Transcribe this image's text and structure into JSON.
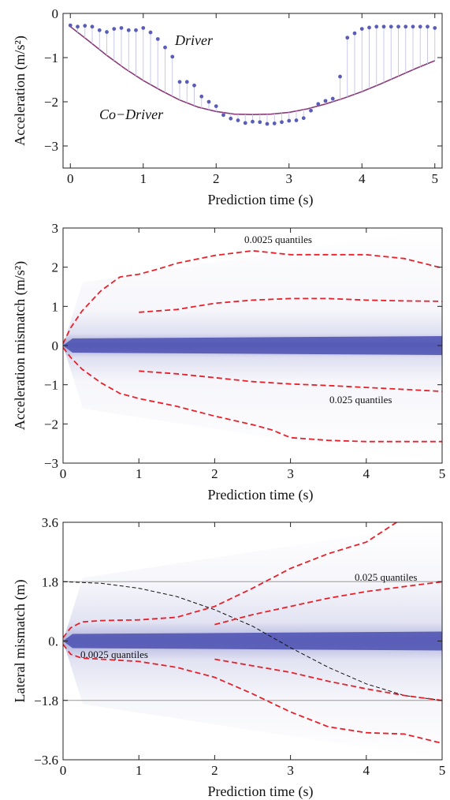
{
  "chart_data": [
    {
      "type": "line",
      "xlabel": "Prediction time (s)",
      "ylabel": "Acceleration (m/s²)",
      "xlim": [
        -0.1,
        5.1
      ],
      "ylim": [
        -3.5,
        0
      ],
      "xticks": [
        "0",
        "1",
        "2",
        "3",
        "4",
        "5"
      ],
      "yticks": [
        "0",
        "−1",
        "−2",
        "−3"
      ],
      "annotations": [
        "Driver",
        "Co−Driver"
      ],
      "series": [
        {
          "name": "Co−Driver",
          "color": "#8b3a7a",
          "style": "solid",
          "x": [
            0,
            0.25,
            0.5,
            0.75,
            1,
            1.25,
            1.5,
            1.75,
            2,
            2.25,
            2.5,
            2.75,
            3,
            3.25,
            3.5,
            3.75,
            4,
            4.25,
            4.5,
            4.75,
            5
          ],
          "y": [
            -0.3,
            -0.62,
            -0.95,
            -1.25,
            -1.52,
            -1.75,
            -1.96,
            -2.12,
            -2.22,
            -2.28,
            -2.29,
            -2.28,
            -2.24,
            -2.16,
            -2.05,
            -1.92,
            -1.77,
            -1.6,
            -1.42,
            -1.24,
            -1.07
          ]
        },
        {
          "name": "Driver",
          "color": "#5a5db8",
          "style": "stem",
          "x": [
            0,
            0.1,
            0.2,
            0.3,
            0.4,
            0.5,
            0.6,
            0.7,
            0.8,
            0.9,
            1.0,
            1.1,
            1.2,
            1.3,
            1.4,
            1.5,
            1.6,
            1.7,
            1.8,
            1.9,
            2.0,
            2.1,
            2.2,
            2.3,
            2.4,
            2.5,
            2.6,
            2.7,
            2.8,
            2.9,
            3.0,
            3.1,
            3.2,
            3.3,
            3.4,
            3.5,
            3.6,
            3.7,
            3.8,
            3.9,
            4.0,
            4.1,
            4.2,
            4.3,
            4.4,
            4.5,
            4.6,
            4.7,
            4.8,
            4.9,
            5.0
          ],
          "y": [
            -0.27,
            -0.3,
            -0.28,
            -0.3,
            -0.38,
            -0.42,
            -0.35,
            -0.33,
            -0.38,
            -0.38,
            -0.33,
            -0.43,
            -0.58,
            -0.77,
            -0.98,
            -1.55,
            -1.55,
            -1.63,
            -1.88,
            -2.0,
            -2.1,
            -2.3,
            -2.38,
            -2.42,
            -2.48,
            -2.45,
            -2.46,
            -2.5,
            -2.49,
            -2.46,
            -2.43,
            -2.42,
            -2.37,
            -2.2,
            -2.05,
            -1.98,
            -1.93,
            -1.43,
            -0.55,
            -0.45,
            -0.35,
            -0.32,
            -0.3,
            -0.3,
            -0.3,
            -0.3,
            -0.3,
            -0.3,
            -0.3,
            -0.3,
            -0.33
          ]
        }
      ]
    },
    {
      "type": "area",
      "xlabel": "Prediction time (s)",
      "ylabel": "Acceleration mismatch (m/s²)",
      "xlim": [
        0,
        5
      ],
      "ylim": [
        -3,
        3
      ],
      "xticks": [
        "0",
        "1",
        "2",
        "3",
        "4",
        "5"
      ],
      "yticks": [
        "3",
        "2",
        "1",
        "0",
        "−1",
        "−2",
        "−3"
      ],
      "annotations": [
        "0.0025 quantiles",
        "0.025 quantiles"
      ],
      "series": [
        {
          "name": "",
          "color": "#e8202a",
          "style": "dashed",
          "x": [
            0,
            0.1,
            0.25,
            0.5,
            0.75,
            1,
            1.25,
            1.5,
            2,
            2.5,
            3,
            3.5,
            4,
            4.5,
            5
          ],
          "y": [
            0.05,
            0.45,
            0.88,
            1.4,
            1.75,
            1.82,
            1.95,
            2.1,
            2.3,
            2.42,
            2.32,
            2.32,
            2.32,
            2.22,
            1.98
          ]
        },
        {
          "name": "",
          "color": "#e8202a",
          "style": "dashed",
          "x": [
            1,
            1.5,
            2,
            2.5,
            3,
            3.5,
            4,
            4.5,
            5
          ],
          "y": [
            0.85,
            0.92,
            1.08,
            1.16,
            1.2,
            1.2,
            1.16,
            1.14,
            1.13
          ]
        },
        {
          "name": "",
          "color": "#e8202a",
          "style": "dashed",
          "x": [
            1,
            1.5,
            2,
            2.5,
            3,
            3.5,
            4,
            4.5,
            5
          ],
          "y": [
            -0.65,
            -0.72,
            -0.82,
            -0.92,
            -0.98,
            -1.02,
            -1.07,
            -1.12,
            -1.17
          ]
        },
        {
          "name": "",
          "color": "#e8202a",
          "style": "dashed",
          "x": [
            0,
            0.1,
            0.25,
            0.5,
            0.75,
            1,
            1.5,
            2,
            2.5,
            2.75,
            3,
            3.5,
            4,
            4.5,
            5
          ],
          "y": [
            -0.05,
            -0.3,
            -0.6,
            -0.95,
            -1.22,
            -1.35,
            -1.55,
            -1.8,
            -2.02,
            -2.15,
            -2.35,
            -2.42,
            -2.45,
            -2.45,
            -2.45
          ]
        }
      ]
    },
    {
      "type": "area",
      "xlabel": "Prediction time (s)",
      "ylabel": "Lateral mismatch (m)",
      "xlim": [
        0,
        5
      ],
      "ylim": [
        -3.6,
        3.6
      ],
      "xticks": [
        "0",
        "1",
        "2",
        "3",
        "4",
        "5"
      ],
      "yticks": [
        "3.6",
        "1.8",
        "0.",
        "−1.8",
        "−3.6"
      ],
      "annotations": [
        "0.025 quantiles",
        "0.0025 quantiles"
      ],
      "reference_lines": [
        1.8,
        -1.8
      ],
      "series": [
        {
          "name": "",
          "color": "#111111",
          "style": "dashed",
          "x": [
            0,
            0.5,
            1,
            1.5,
            2,
            2.5,
            3,
            3.5,
            4,
            4.5,
            5
          ],
          "y": [
            1.8,
            1.75,
            1.6,
            1.35,
            0.95,
            0.45,
            -0.2,
            -0.8,
            -1.3,
            -1.65,
            -1.8
          ]
        },
        {
          "name": "",
          "color": "#e8202a",
          "style": "dashed",
          "x": [
            0,
            0.1,
            0.25,
            0.5,
            1,
            1.5,
            2,
            2.5,
            3,
            3.5,
            4,
            4.4
          ],
          "y": [
            0.1,
            0.4,
            0.58,
            0.62,
            0.64,
            0.72,
            1.05,
            1.6,
            2.2,
            2.65,
            3.0,
            3.6
          ]
        },
        {
          "name": "",
          "color": "#e8202a",
          "style": "dashed",
          "x": [
            2,
            2.5,
            3,
            3.5,
            4,
            4.5,
            5
          ],
          "y": [
            0.5,
            0.8,
            1.05,
            1.3,
            1.5,
            1.65,
            1.8
          ]
        },
        {
          "name": "",
          "color": "#e8202a",
          "style": "dashed",
          "x": [
            0,
            0.1,
            0.25,
            0.5,
            1,
            1.5,
            2,
            2.5,
            3,
            3.5,
            4,
            4.5,
            5
          ],
          "y": [
            -0.1,
            -0.4,
            -0.52,
            -0.55,
            -0.62,
            -0.8,
            -1.1,
            -1.6,
            -2.15,
            -2.6,
            -2.78,
            -2.82,
            -3.1
          ]
        },
        {
          "name": "",
          "color": "#e8202a",
          "style": "dashed",
          "x": [
            2,
            2.5,
            3,
            3.5,
            4,
            4.5,
            5
          ],
          "y": [
            -0.55,
            -0.75,
            -0.95,
            -1.22,
            -1.45,
            -1.65,
            -1.8
          ]
        }
      ]
    }
  ],
  "colors": {
    "density": "#4a4fb0",
    "quantile": "#e8202a",
    "codriver": "#8b3a7a",
    "stem": "#c9c9ec"
  }
}
